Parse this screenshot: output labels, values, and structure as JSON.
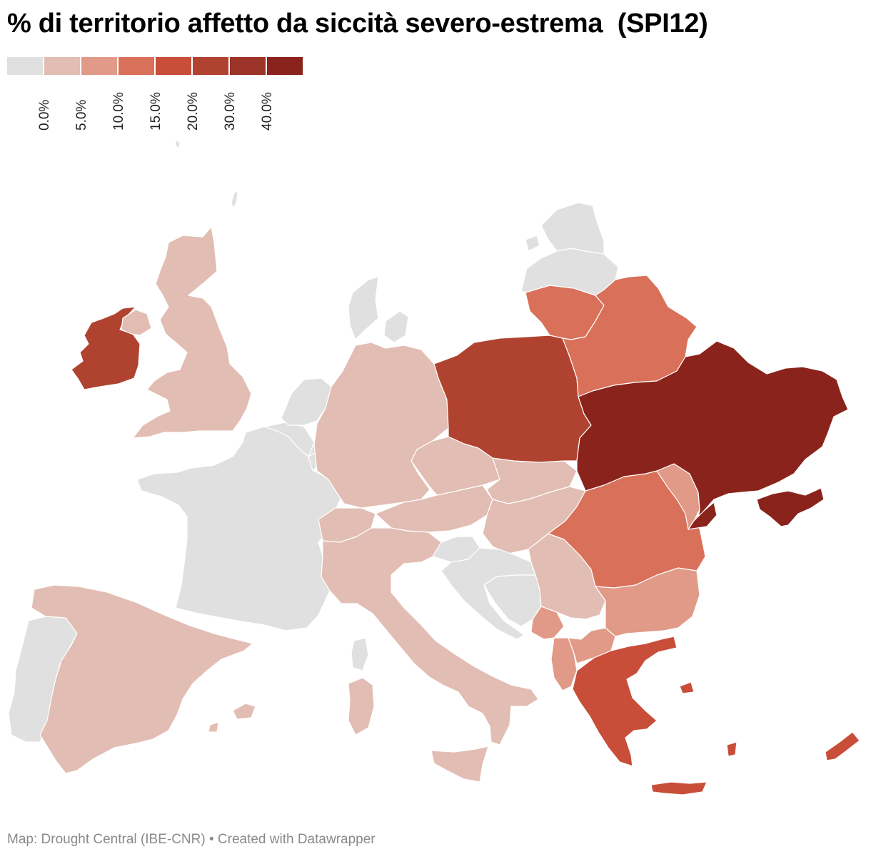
{
  "title": "% di territorio affetto da siccità severo-estrema  (SPI12)",
  "legend": {
    "colors": [
      "#e0e0e0",
      "#e2bdb3",
      "#e09a87",
      "#d97059",
      "#c84e39",
      "#b04330",
      "#9c3328",
      "#8a231c"
    ],
    "labels": [
      "0.0%",
      "5.0%",
      "10.0%",
      "15.0%",
      "20.0%",
      "30.0%",
      "40.0%"
    ]
  },
  "footer": "Map: Drought Central (IBE-CNR) • Created with Datawrapper",
  "map_data": {
    "type": "choropleth",
    "value_bins": [
      "0-5%",
      "5-10%",
      "10-15%",
      "15-20%",
      "20-30%",
      "30-40%",
      ">40%"
    ],
    "countries": {
      "iceland": "#e0e0e0",
      "united-kingdom": "#e2bdb3",
      "ireland": "#b04330",
      "france": "#e0e0e0",
      "spain": "#e2bdb3",
      "portugal": "#e0e0e0",
      "belgium": "#e0e0e0",
      "netherlands": "#e0e0e0",
      "luxembourg": "#e0e0e0",
      "denmark": "#e0e0e0",
      "germany": "#e2bdb3",
      "switzerland": "#e2bdb3",
      "austria": "#e2bdb3",
      "czechia": "#e2bdb3",
      "slovakia": "#e2bdb3",
      "hungary": "#e2bdb3",
      "italy": "#e2bdb3",
      "slovenia": "#e0e0e0",
      "croatia": "#e0e0e0",
      "bosnia": "#e0e0e0",
      "serbia": "#e2bdb3",
      "montenegro": "#e09a87",
      "albania": "#e09a87",
      "north-macedonia": "#e09a87",
      "kosovo": "#ffffff",
      "bulgaria": "#e09a87",
      "romania": "#d97059",
      "moldova": "#e09a87",
      "greece": "#c84e39",
      "cyprus": "#c84e39",
      "poland": "#b04330",
      "lithuania": "#d97059",
      "belarus": "#d97059",
      "latvia": "#e0e0e0",
      "estonia": "#e0e0e0",
      "ukraine": "#8a231c",
      "crimea": "#8a231c"
    }
  }
}
